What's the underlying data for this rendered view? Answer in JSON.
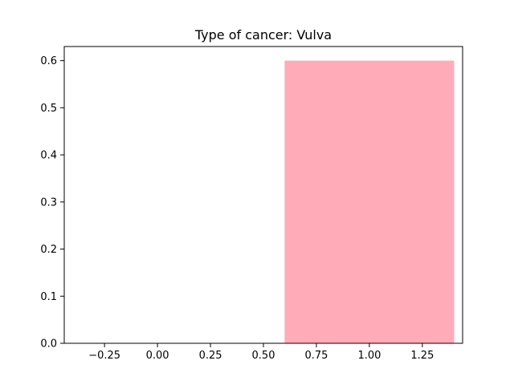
{
  "chart_data": {
    "type": "bar",
    "title": "Type of cancer: Vulva",
    "xlabel": "",
    "ylabel": "",
    "bars": [
      {
        "x": 1.0,
        "width": 0.8,
        "value": 0.6
      }
    ],
    "xlim": [
      -0.44,
      1.44
    ],
    "ylim": [
      0,
      0.63
    ],
    "xticks": [
      -0.25,
      0.0,
      0.25,
      0.5,
      0.75,
      1.0,
      1.25
    ],
    "xtick_labels": [
      "−0.25",
      "0.00",
      "0.25",
      "0.50",
      "0.75",
      "1.00",
      "1.25"
    ],
    "yticks": [
      0.0,
      0.1,
      0.2,
      0.3,
      0.4,
      0.5,
      0.6
    ],
    "ytick_labels": [
      "0.0",
      "0.1",
      "0.2",
      "0.3",
      "0.4",
      "0.5",
      "0.6"
    ],
    "bar_color": "#ffabb8",
    "grid": false,
    "legend": "none"
  }
}
